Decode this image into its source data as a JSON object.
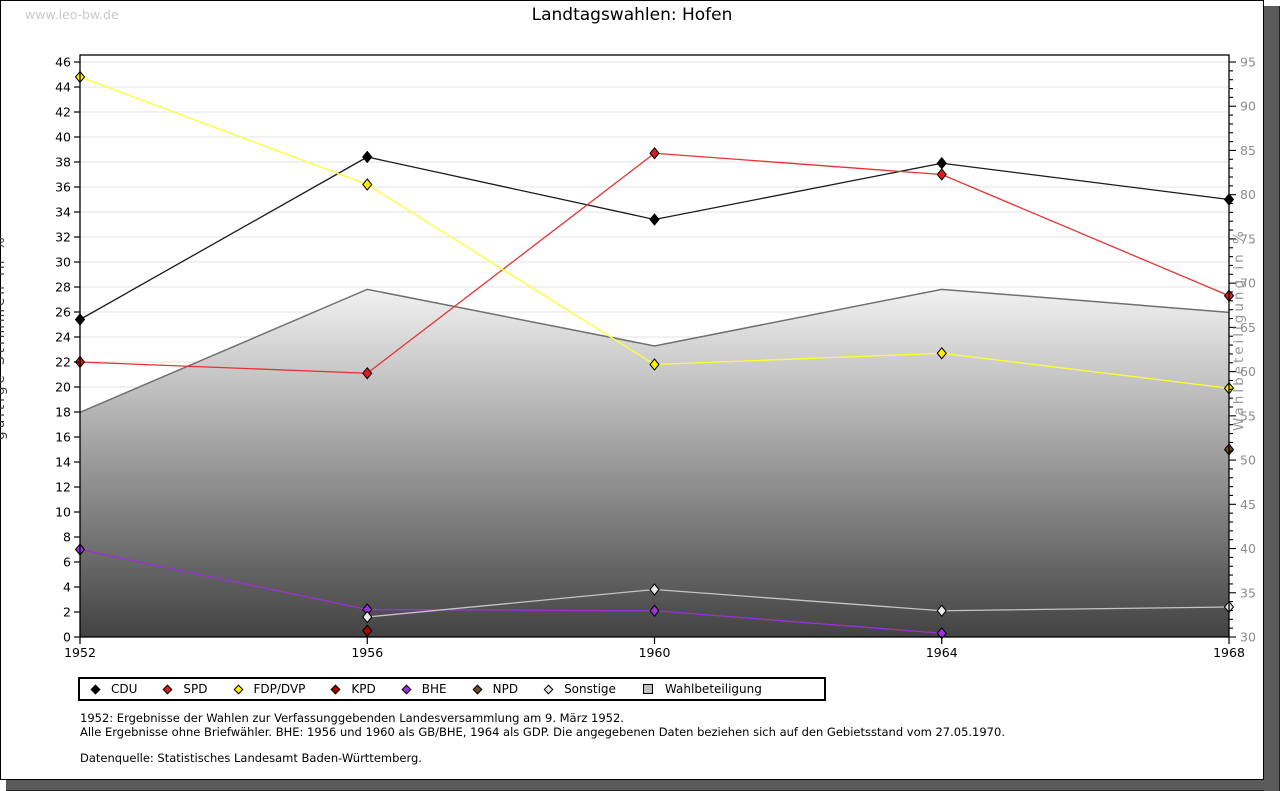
{
  "watermark": "www.leo-bw.de",
  "title": "Landtagswahlen: Hofen",
  "chart_data": {
    "type": "line",
    "title": "Landtagswahlen: Hofen",
    "x": [
      1952,
      1956,
      1960,
      1964,
      1968
    ],
    "ylabel_left": "gültige Stimmen in %",
    "ylabel_right": "Wahlbeteiligung in %",
    "ylim_left": [
      0,
      46
    ],
    "ytick_left_step": 2,
    "ylim_right": [
      30,
      95
    ],
    "ytick_right_minor_step": 1,
    "ytick_right_label_step": 5,
    "grid": true,
    "legend_position": "bottom",
    "series": [
      {
        "name": "CDU",
        "axis": "left",
        "marker_color": "#000000",
        "line_color": "#1a1a1a",
        "values": [
          25.4,
          38.4,
          33.4,
          37.9,
          35.0
        ]
      },
      {
        "name": "SPD",
        "axis": "left",
        "marker_color": "#d42020",
        "line_color": "#e83232",
        "values": [
          22.0,
          21.1,
          38.7,
          37.0,
          27.3
        ]
      },
      {
        "name": "FDP/DVP",
        "axis": "left",
        "marker_color": "#ffee00",
        "line_color": "#ffff33",
        "values": [
          44.8,
          36.2,
          21.8,
          22.7,
          19.9
        ]
      },
      {
        "name": "KPD",
        "axis": "left",
        "marker_color": "#aa0000",
        "line_color": "#aa0000",
        "values": [
          null,
          0.5,
          null,
          null,
          null
        ]
      },
      {
        "name": "BHE",
        "axis": "left",
        "marker_color": "#9b32d4",
        "line_color": "#9b32d4",
        "values": [
          7.0,
          2.2,
          2.1,
          0.3,
          null
        ]
      },
      {
        "name": "NPD",
        "axis": "left",
        "marker_color": "#6b4a24",
        "line_color": "#6b4a24",
        "values": [
          null,
          null,
          null,
          null,
          15.0
        ]
      },
      {
        "name": "Sonstige",
        "axis": "left",
        "marker_color": "#e8e8e8",
        "line_color": "#c4c4c4",
        "values": [
          null,
          1.6,
          3.8,
          2.1,
          2.4
        ]
      }
    ],
    "area_series": {
      "name": "Wahlbeteiligung",
      "axis": "right",
      "line_color": "#707070",
      "fill_top": "#fbfbfb",
      "fill_bottom": "#3c3c3c",
      "values": [
        55.4,
        69.3,
        62.9,
        69.3,
        66.7
      ]
    }
  },
  "legend": [
    {
      "label": "CDU",
      "color": "#000000",
      "shape": "diamond"
    },
    {
      "label": "SPD",
      "color": "#d42020",
      "shape": "diamond"
    },
    {
      "label": "FDP/DVP",
      "color": "#ffee00",
      "shape": "diamond"
    },
    {
      "label": "KPD",
      "color": "#aa0000",
      "shape": "diamond"
    },
    {
      "label": "BHE",
      "color": "#9b32d4",
      "shape": "diamond"
    },
    {
      "label": "NPD",
      "color": "#6b4a24",
      "shape": "diamond"
    },
    {
      "label": "Sonstige",
      "color": "#e8e8e8",
      "shape": "diamond"
    },
    {
      "label": "Wahlbeteiligung",
      "color": "#c0c0c0",
      "shape": "square"
    }
  ],
  "footnotes": [
    "1952: Ergebnisse der Wahlen zur Verfassunggebenden Landesversammlung am 9. März 1952.",
    "Alle Ergebnisse ohne Briefwähler. BHE: 1956 und 1960 als GB/BHE, 1964 als GDP. Die angegebenen Daten beziehen sich auf den Gebietsstand vom 27.05.1970.",
    "Datenquelle: Statistisches Landesamt Baden-Württemberg."
  ],
  "colors": {
    "grid": "#e3e3e3",
    "axis": "#000000",
    "right_axis_text": "#8c8c8c",
    "shadow": "#5a5a5a",
    "watermark": "#c9c9c9"
  }
}
